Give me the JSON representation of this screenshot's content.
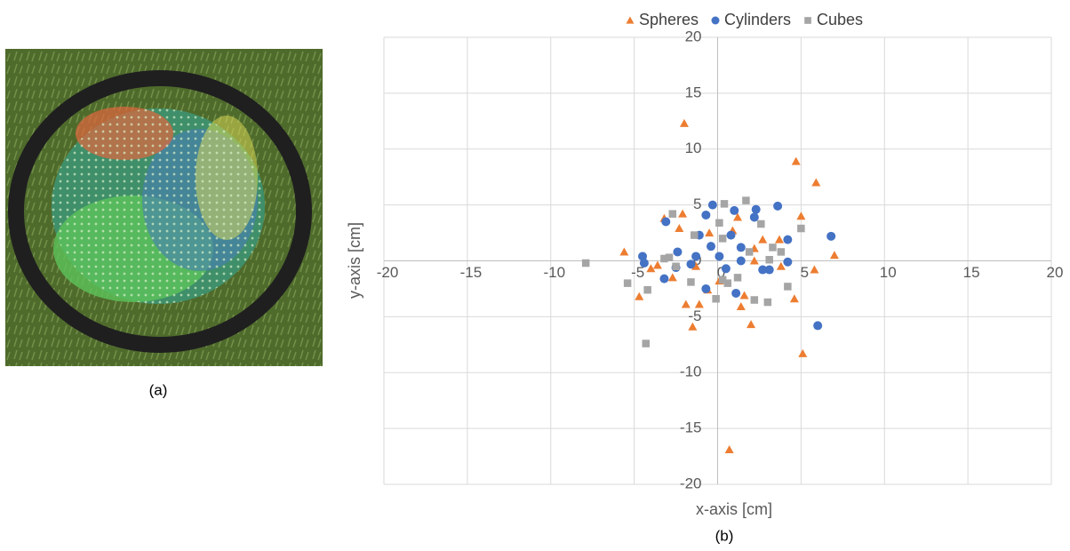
{
  "figure": {
    "panel_a": {
      "caption": "(a)"
    },
    "panel_b": {
      "caption": "(b)"
    }
  },
  "chart_data": {
    "type": "scatter",
    "x_label": "x-axis [cm]",
    "y_label": "y-axis [cm]",
    "xlim": [
      -20,
      20
    ],
    "ylim": [
      -20,
      20
    ],
    "xticks": [
      -20,
      -15,
      -10,
      -5,
      0,
      5,
      10,
      15,
      20
    ],
    "yticks": [
      -20,
      -15,
      -10,
      -5,
      0,
      5,
      10,
      15,
      20
    ],
    "grid": true,
    "legend": "top",
    "series": [
      {
        "name": "Spheres",
        "color": "#ed7d31",
        "marker": "triangle",
        "x": [
          -2.0,
          4.7,
          5.9,
          -3.2,
          -2.1,
          -0.5,
          1.2,
          5.0,
          -2.3,
          0.9,
          2.7,
          3.7,
          2.2,
          -5.6,
          7.0,
          -3.6,
          -4.0,
          -1.3,
          2.2,
          3.8,
          5.8,
          -4.7,
          -0.6,
          1.6,
          4.6,
          -1.9,
          -1.1,
          1.4,
          -1.5,
          2.0,
          5.1,
          0.7,
          0.1,
          -2.7
        ],
        "y": [
          12.3,
          8.9,
          7.0,
          3.8,
          4.2,
          2.5,
          3.9,
          4.0,
          2.9,
          2.7,
          1.9,
          1.9,
          1.1,
          0.8,
          0.5,
          -0.4,
          -0.7,
          -0.5,
          0,
          -0.5,
          -0.8,
          -3.2,
          -2.6,
          -3.1,
          -3.4,
          -3.9,
          -3.9,
          -4.1,
          -5.9,
          -5.7,
          -8.3,
          -16.9,
          -1.8,
          -1.5
        ]
      },
      {
        "name": "Cylinders",
        "color": "#4472c4",
        "marker": "circle",
        "x": [
          -0.3,
          1.0,
          2.3,
          3.6,
          -3.1,
          -0.7,
          2.2,
          -1.1,
          0.8,
          -0.4,
          1.4,
          4.2,
          6.8,
          -2.4,
          0.1,
          -4.5,
          -4.4,
          -1.6,
          1.4,
          2.7,
          4.2,
          -3.2,
          -2.5,
          0.5,
          -0.7,
          1.1,
          6.0,
          3.1,
          -1.3
        ],
        "y": [
          5.0,
          4.5,
          4.6,
          4.9,
          3.5,
          4.1,
          3.9,
          2.3,
          2.3,
          1.3,
          1.2,
          1.9,
          2.2,
          0.8,
          0.4,
          0.4,
          -0.2,
          -0.3,
          0,
          -0.8,
          -0.1,
          -1.6,
          -0.6,
          -0.7,
          -2.5,
          -2.9,
          -5.8,
          -0.8,
          0.4
        ]
      },
      {
        "name": "Cubes",
        "color": "#a5a5a5",
        "marker": "square",
        "x": [
          -7.9,
          -5.4,
          -4.3,
          -3.2,
          -2.5,
          -1.4,
          -2.7,
          0.4,
          1.7,
          2.6,
          0.1,
          0.3,
          3.3,
          3.8,
          3.1,
          1.9,
          5.0,
          4.2,
          3.0,
          2.2,
          1.2,
          0.3,
          0.6,
          -0.1,
          -1.6,
          -4.2,
          -2.9
        ],
        "y": [
          -0.2,
          -2.0,
          -7.4,
          0.2,
          -0.5,
          2.3,
          4.2,
          5.1,
          5.4,
          3.3,
          3.4,
          2.0,
          1.2,
          0.8,
          0.1,
          0.8,
          2.9,
          -2.3,
          -3.7,
          -3.5,
          -1.5,
          -1.7,
          -2.0,
          -3.4,
          -1.9,
          -2.6,
          0.3
        ]
      }
    ]
  }
}
